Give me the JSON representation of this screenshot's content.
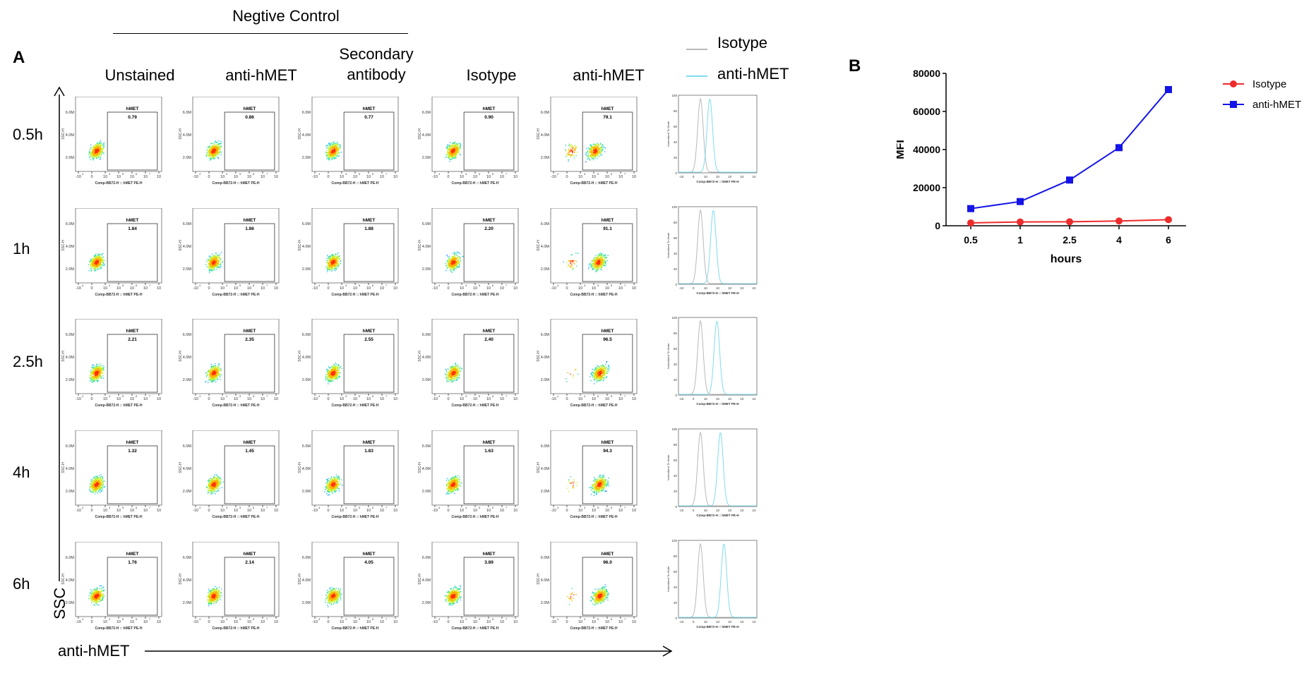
{
  "panel_a": {
    "letter": "A",
    "group_title": "Negtive Control",
    "columns": [
      "Unstained",
      "anti-hMET",
      "Secondary antibody",
      "Isotype",
      "anti-hMET"
    ],
    "rows": [
      "0.5h",
      "1h",
      "2.5h",
      "4h",
      "6h"
    ],
    "y_axis_label": "SSC",
    "x_axis_label": "anti-hMET",
    "histogram_legend": [
      {
        "name": "Isotype",
        "color": "#b8b8b8"
      },
      {
        "name": "anti-hMET",
        "color": "#7fdcec"
      }
    ],
    "dot_plot": {
      "gate_label": "hMET",
      "y_ticks": [
        "6.0M",
        "4.0M",
        "2.0M"
      ],
      "y_axis_title": "SSC-H",
      "x_axis_title": "Comp-BB72-H :: hMET PE-H",
      "x_ticks": [
        "-10",
        "0",
        "10",
        "10",
        "10",
        "10",
        "10"
      ],
      "x_tick_exponents": [
        "4",
        "",
        "4",
        "5",
        "6",
        "7",
        ""
      ]
    },
    "histogram": {
      "y_ticks": [
        "100",
        "80",
        "60",
        "40",
        "20",
        "0"
      ],
      "y_axis_title": "Normalized To Mode",
      "x_axis_title": "Comp-BB72-H :: hMET PE-H"
    },
    "gate_values": [
      [
        "0.79",
        "0.86",
        "0.77",
        "0.90",
        "79.1"
      ],
      [
        "1.84",
        "1.86",
        "1.88",
        "2.20",
        "91.1"
      ],
      [
        "2.21",
        "2.35",
        "2.55",
        "2.40",
        "96.5"
      ],
      [
        "1.32",
        "1.45",
        "1.83",
        "1.63",
        "94.3"
      ],
      [
        "1.76",
        "2.14",
        "4.05",
        "3.89",
        "96.0"
      ]
    ]
  },
  "panel_b": {
    "letter": "B"
  },
  "chart_data": {
    "type": "line",
    "categories": [
      "0.5",
      "1",
      "2.5",
      "4",
      "6"
    ],
    "xlabel": "hours",
    "ylabel": "MFI",
    "ylim": [
      0,
      80000
    ],
    "y_ticks": [
      0,
      20000,
      40000,
      60000,
      80000
    ],
    "legend_position": "top-right",
    "series": [
      {
        "name": "Isotype",
        "color": "#ee2b2b",
        "marker": "circle",
        "values": [
          1500,
          2000,
          2100,
          2500,
          3200
        ]
      },
      {
        "name": "anti-hMET",
        "color": "#1414e6",
        "marker": "square",
        "values": [
          9000,
          12700,
          24000,
          41000,
          71500
        ]
      }
    ]
  }
}
